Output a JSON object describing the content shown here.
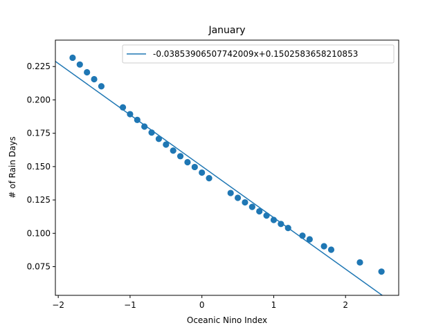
{
  "chart_data": {
    "type": "scatter",
    "title": "January",
    "xlabel": "Oceanic Nino Index",
    "ylabel": "# of Rain Days",
    "xlim": [
      -2.04,
      2.74
    ],
    "ylim": [
      0.0535,
      0.2448
    ],
    "x_ticks": [
      -2,
      -1,
      0,
      1,
      2
    ],
    "x_tick_labels": [
      "−2",
      "−1",
      "0",
      "1",
      "2"
    ],
    "y_ticks": [
      0.075,
      0.1,
      0.125,
      0.15,
      0.175,
      0.2,
      0.225
    ],
    "y_tick_labels": [
      "0.075",
      "0.100",
      "0.125",
      "0.150",
      "0.175",
      "0.200",
      "0.225"
    ],
    "grid": false,
    "legend_position": "top-right",
    "fit_line": {
      "label": "-0.03853906507742009x+0.1502583658210853",
      "slope": -0.03853906507742009,
      "intercept": 0.1502583658210853,
      "color": "#1f77b4"
    },
    "points": {
      "color": "#1f77b4",
      "x": [
        -1.8,
        -1.7,
        -1.6,
        -1.5,
        -1.4,
        -1.1,
        -1.0,
        -0.9,
        -0.8,
        -0.7,
        -0.6,
        -0.5,
        -0.4,
        -0.3,
        -0.2,
        -0.1,
        0.0,
        0.1,
        0.4,
        0.5,
        0.6,
        0.7,
        0.8,
        0.9,
        1.0,
        1.1,
        1.2,
        1.4,
        1.5,
        1.7,
        1.8,
        2.2,
        2.5
      ],
      "y": [
        0.2316,
        0.2265,
        0.2207,
        0.2155,
        0.2102,
        0.1944,
        0.1893,
        0.185,
        0.18,
        0.1755,
        0.1708,
        0.1665,
        0.162,
        0.1578,
        0.1533,
        0.1497,
        0.1455,
        0.1413,
        0.1302,
        0.1266,
        0.1232,
        0.1198,
        0.1165,
        0.1133,
        0.11,
        0.107,
        0.104,
        0.0982,
        0.0955,
        0.0903,
        0.0877,
        0.0782,
        0.0713
      ]
    }
  }
}
